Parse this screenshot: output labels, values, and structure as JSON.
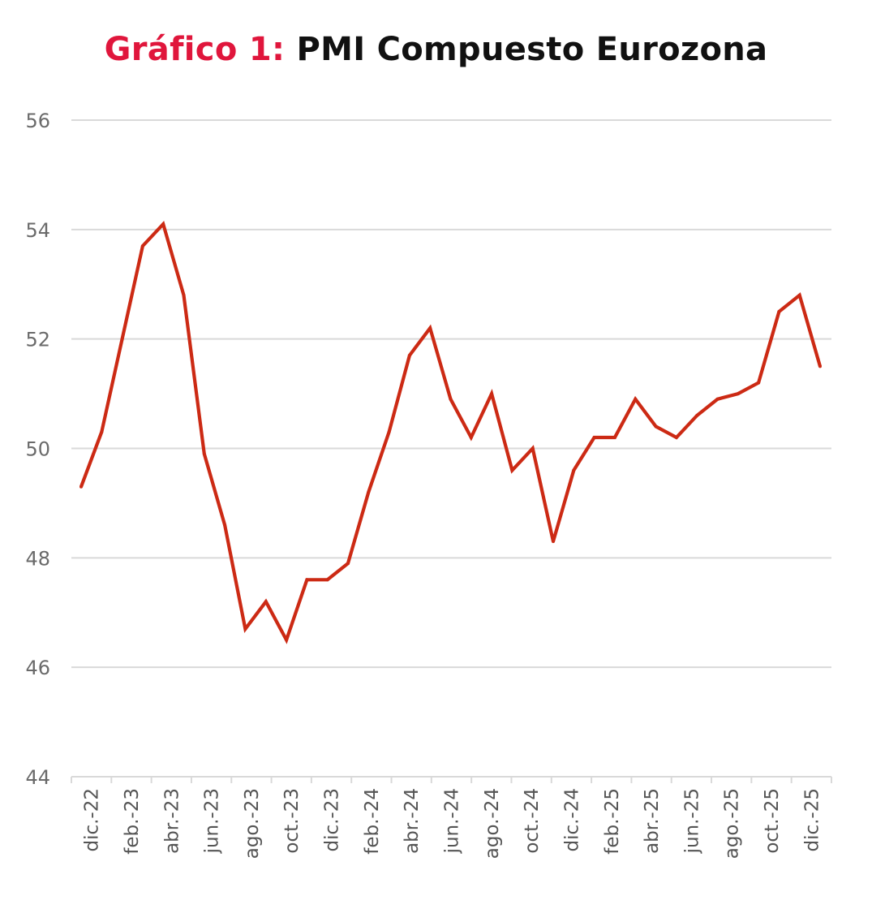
{
  "title": {
    "prefix": "Gráfico 1:",
    "main": "PMI Compuesto Eurozona"
  },
  "colors": {
    "line": "#cc2a14",
    "title_prefix": "#e0163c",
    "grid": "#d9d9d9"
  },
  "chart_data": {
    "type": "line",
    "title": "Gráfico 1: PMI Compuesto Eurozona",
    "xlabel": "",
    "ylabel": "",
    "ylim": [
      44,
      56
    ],
    "yticks": [
      44,
      46,
      48,
      50,
      52,
      54,
      56
    ],
    "grid": true,
    "x": [
      "dic.-22",
      "ene.-23",
      "feb.-23",
      "mar.-23",
      "abr.-23",
      "may.-23",
      "jun.-23",
      "jul.-23",
      "ago.-23",
      "sept.-23",
      "oct.-23",
      "nov.-23",
      "dic.-23",
      "ene.-24",
      "feb.-24",
      "mar.-24",
      "abr.-24",
      "may.-24",
      "jun.-24",
      "jul.-24",
      "ago.-24",
      "sept.-24",
      "oct.-24",
      "nov.-24",
      "dic.-24",
      "ene.-25",
      "feb.-25",
      "mar.-25",
      "abr.-25",
      "may.-25",
      "jun.-25",
      "jul.-25",
      "ago.-25",
      "sept.-25",
      "oct.-25",
      "nov.-25",
      "dic.-25"
    ],
    "xtick_labels": [
      "dic.-22",
      "feb.-23",
      "abr.-23",
      "jun.-23",
      "ago.-23",
      "oct.-23",
      "dic.-23",
      "feb.-24",
      "abr.-24",
      "jun.-24",
      "ago.-24",
      "oct.-24",
      "dic.-24",
      "feb.-25",
      "abr.-25",
      "jun.-25",
      "ago.-25",
      "oct.-25",
      "dic.-25"
    ],
    "series": [
      {
        "name": "PMI Compuesto Eurozona",
        "values": [
          49.3,
          50.3,
          52.0,
          53.7,
          54.1,
          52.8,
          49.9,
          48.6,
          46.7,
          47.2,
          46.5,
          47.6,
          47.6,
          47.9,
          49.2,
          50.3,
          51.7,
          52.2,
          50.9,
          50.2,
          51.0,
          49.6,
          50.0,
          48.3,
          49.6,
          50.2,
          50.2,
          50.9,
          50.4,
          50.2,
          50.6,
          50.9,
          51.0,
          51.2,
          52.5,
          52.8,
          51.5
        ]
      }
    ]
  }
}
